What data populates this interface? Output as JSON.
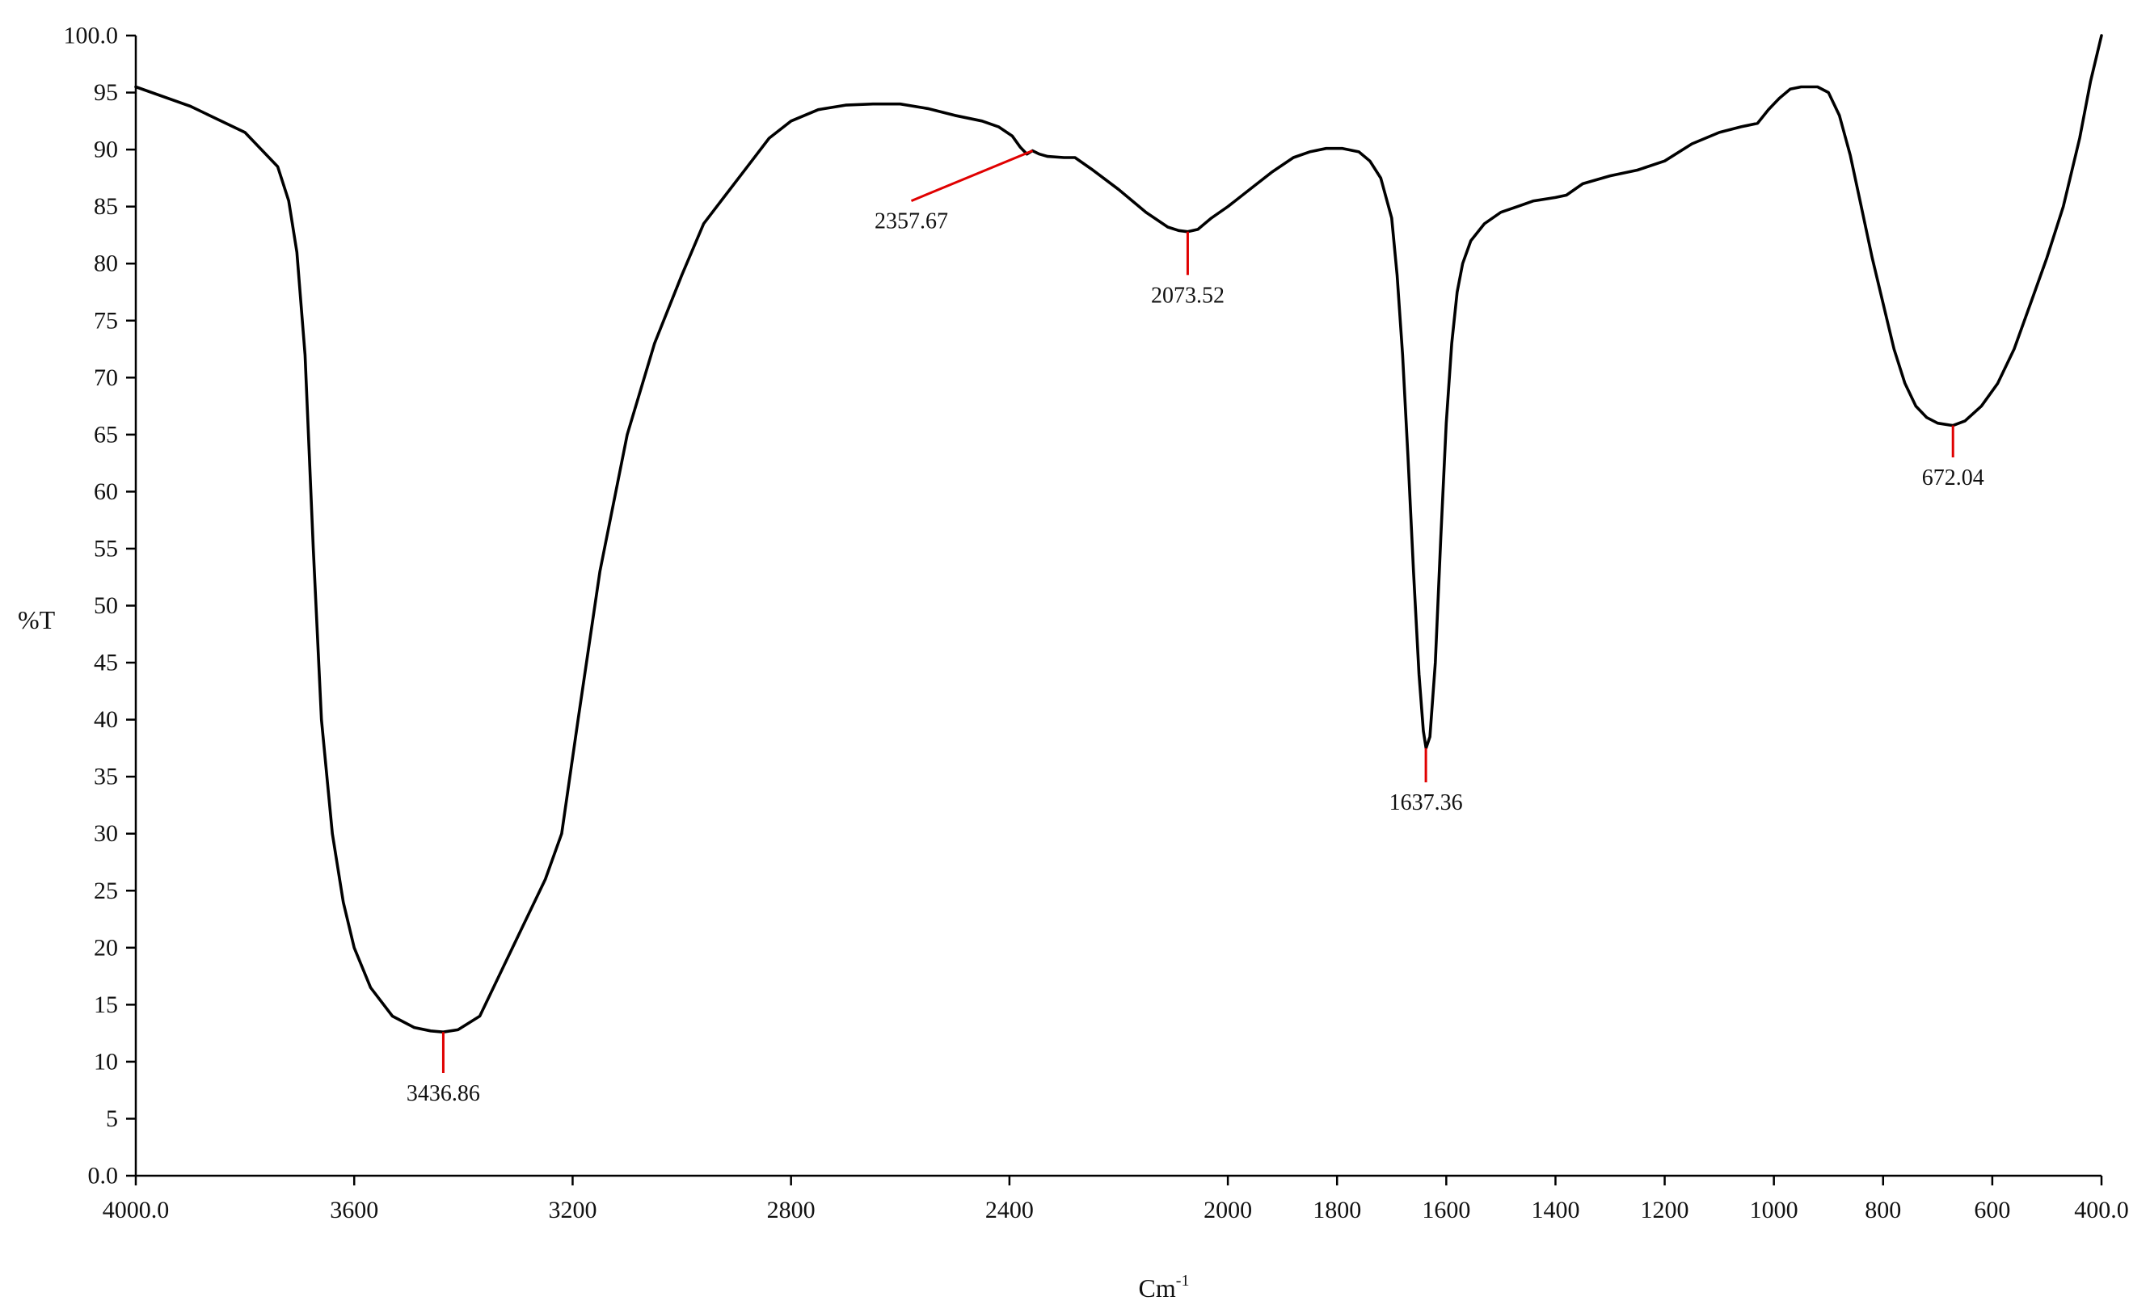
{
  "chart_data": {
    "type": "line",
    "title": "",
    "xlabel": "Cm",
    "xlabel_superscript": "-1",
    "ylabel": "%T",
    "xlim": [
      4000.0,
      400.0
    ],
    "ylim": [
      0.0,
      100.0
    ],
    "x_ticks": [
      {
        "value": 4000,
        "label": "4000.0"
      },
      {
        "value": 3600,
        "label": "3600"
      },
      {
        "value": 3200,
        "label": "3200"
      },
      {
        "value": 2800,
        "label": "2800"
      },
      {
        "value": 2400,
        "label": "2400"
      },
      {
        "value": 2000,
        "label": "2000"
      },
      {
        "value": 1800,
        "label": "1800"
      },
      {
        "value": 1600,
        "label": "1600"
      },
      {
        "value": 1400,
        "label": "1400"
      },
      {
        "value": 1200,
        "label": "1200"
      },
      {
        "value": 1000,
        "label": "1000"
      },
      {
        "value": 800,
        "label": "800"
      },
      {
        "value": 600,
        "label": "600"
      },
      {
        "value": 400,
        "label": "400.0"
      }
    ],
    "y_ticks": [
      {
        "value": 0,
        "label": "0.0"
      },
      {
        "value": 5,
        "label": "5"
      },
      {
        "value": 10,
        "label": "10"
      },
      {
        "value": 15,
        "label": "15"
      },
      {
        "value": 20,
        "label": "20"
      },
      {
        "value": 25,
        "label": "25"
      },
      {
        "value": 30,
        "label": "30"
      },
      {
        "value": 35,
        "label": "35"
      },
      {
        "value": 40,
        "label": "40"
      },
      {
        "value": 45,
        "label": "45"
      },
      {
        "value": 50,
        "label": "50"
      },
      {
        "value": 55,
        "label": "55"
      },
      {
        "value": 60,
        "label": "60"
      },
      {
        "value": 65,
        "label": "65"
      },
      {
        "value": 70,
        "label": "70"
      },
      {
        "value": 75,
        "label": "75"
      },
      {
        "value": 80,
        "label": "80"
      },
      {
        "value": 85,
        "label": "85"
      },
      {
        "value": 90,
        "label": "90"
      },
      {
        "value": 95,
        "label": "95"
      },
      {
        "value": 100,
        "label": "100.0"
      }
    ],
    "grid": false,
    "colors": {
      "line": "#000000",
      "peak_marker": "#e00000"
    },
    "series": [
      {
        "points": [
          [
            4000,
            95.5
          ],
          [
            3900,
            93.8
          ],
          [
            3800,
            91.5
          ],
          [
            3770,
            90.0
          ],
          [
            3740,
            88.5
          ],
          [
            3720,
            85.5
          ],
          [
            3705,
            81.0
          ],
          [
            3690,
            72.0
          ],
          [
            3675,
            55.0
          ],
          [
            3660,
            40.0
          ],
          [
            3640,
            30.0
          ],
          [
            3620,
            24.0
          ],
          [
            3600,
            20.0
          ],
          [
            3570,
            16.5
          ],
          [
            3530,
            14.0
          ],
          [
            3490,
            13.0
          ],
          [
            3460,
            12.7
          ],
          [
            3437,
            12.6
          ],
          [
            3410,
            12.8
          ],
          [
            3370,
            14.0
          ],
          [
            3330,
            18.0
          ],
          [
            3290,
            22.0
          ],
          [
            3250,
            26.0
          ],
          [
            3220,
            30.0
          ],
          [
            3190,
            40.0
          ],
          [
            3150,
            53.0
          ],
          [
            3100,
            65.0
          ],
          [
            3050,
            73.0
          ],
          [
            3000,
            79.0
          ],
          [
            2960,
            83.5
          ],
          [
            2920,
            86.0
          ],
          [
            2880,
            88.5
          ],
          [
            2840,
            91.0
          ],
          [
            2800,
            92.5
          ],
          [
            2750,
            93.5
          ],
          [
            2700,
            93.9
          ],
          [
            2650,
            94.0
          ],
          [
            2600,
            94.0
          ],
          [
            2550,
            93.6
          ],
          [
            2500,
            93.0
          ],
          [
            2450,
            92.5
          ],
          [
            2420,
            92.0
          ],
          [
            2395,
            91.2
          ],
          [
            2380,
            90.2
          ],
          [
            2368,
            89.6
          ],
          [
            2358,
            89.9
          ],
          [
            2345,
            89.6
          ],
          [
            2330,
            89.4
          ],
          [
            2300,
            89.3
          ],
          [
            2280,
            89.3
          ],
          [
            2250,
            88.3
          ],
          [
            2200,
            86.5
          ],
          [
            2150,
            84.5
          ],
          [
            2110,
            83.2
          ],
          [
            2090,
            82.9
          ],
          [
            2074,
            82.8
          ],
          [
            2055,
            83.0
          ],
          [
            2030,
            84.0
          ],
          [
            2000,
            85.0
          ],
          [
            1960,
            86.5
          ],
          [
            1920,
            88.0
          ],
          [
            1880,
            89.3
          ],
          [
            1850,
            89.8
          ],
          [
            1820,
            90.1
          ],
          [
            1790,
            90.1
          ],
          [
            1760,
            89.8
          ],
          [
            1740,
            89.0
          ],
          [
            1720,
            87.5
          ],
          [
            1700,
            84.0
          ],
          [
            1690,
            79.0
          ],
          [
            1680,
            72.0
          ],
          [
            1670,
            63.0
          ],
          [
            1660,
            53.0
          ],
          [
            1650,
            44.0
          ],
          [
            1642,
            39.0
          ],
          [
            1637,
            37.5
          ],
          [
            1630,
            38.5
          ],
          [
            1620,
            45.0
          ],
          [
            1610,
            56.0
          ],
          [
            1600,
            66.0
          ],
          [
            1590,
            73.0
          ],
          [
            1580,
            77.5
          ],
          [
            1570,
            80.0
          ],
          [
            1555,
            82.0
          ],
          [
            1530,
            83.5
          ],
          [
            1500,
            84.5
          ],
          [
            1470,
            85.0
          ],
          [
            1440,
            85.5
          ],
          [
            1400,
            85.8
          ],
          [
            1380,
            86.0
          ],
          [
            1350,
            87.0
          ],
          [
            1300,
            87.7
          ],
          [
            1250,
            88.2
          ],
          [
            1200,
            89.0
          ],
          [
            1150,
            90.5
          ],
          [
            1100,
            91.5
          ],
          [
            1060,
            92.0
          ],
          [
            1030,
            92.3
          ],
          [
            1010,
            93.5
          ],
          [
            990,
            94.5
          ],
          [
            970,
            95.3
          ],
          [
            950,
            95.5
          ],
          [
            920,
            95.5
          ],
          [
            900,
            95.0
          ],
          [
            880,
            93.0
          ],
          [
            860,
            89.5
          ],
          [
            840,
            85.0
          ],
          [
            820,
            80.5
          ],
          [
            800,
            76.5
          ],
          [
            780,
            72.5
          ],
          [
            760,
            69.5
          ],
          [
            740,
            67.5
          ],
          [
            720,
            66.5
          ],
          [
            700,
            66.0
          ],
          [
            672,
            65.8
          ],
          [
            650,
            66.2
          ],
          [
            620,
            67.5
          ],
          [
            590,
            69.5
          ],
          [
            560,
            72.5
          ],
          [
            530,
            76.5
          ],
          [
            500,
            80.5
          ],
          [
            470,
            85.0
          ],
          [
            440,
            91.0
          ],
          [
            420,
            96.0
          ],
          [
            400,
            100.0
          ]
        ]
      }
    ],
    "peaks": [
      {
        "x": 3436.86,
        "y": 12.6,
        "label": "3436.86",
        "marker_dx": 0,
        "marker_end_y": 9.0
      },
      {
        "x": 2357.67,
        "y": 89.9,
        "label": "2357.67",
        "marker_dx": -150,
        "marker_end_y": 85.5
      },
      {
        "x": 2073.52,
        "y": 82.8,
        "label": "2073.52",
        "marker_dx": 0,
        "marker_end_y": 79.0
      },
      {
        "x": 1637.36,
        "y": 37.5,
        "label": "1637.36",
        "marker_dx": 0,
        "marker_end_y": 34.5
      },
      {
        "x": 672.04,
        "y": 65.8,
        "label": "672.04",
        "marker_dx": 0,
        "marker_end_y": 63.0
      }
    ]
  }
}
